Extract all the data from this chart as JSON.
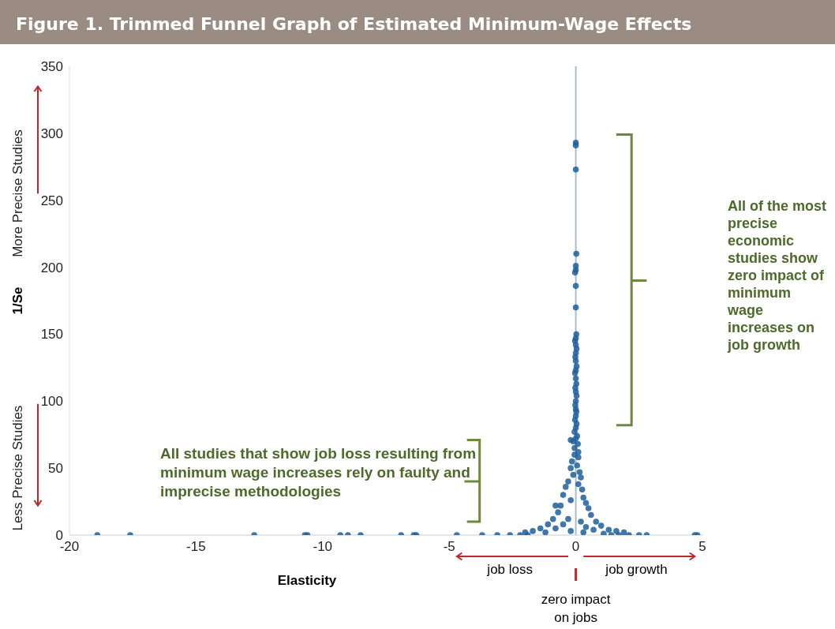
{
  "chart_data": {
    "type": "scatter",
    "title": "Figure 1. Trimmed Funnel Graph of Estimated Minimum-Wage Effects",
    "xlabel": "Elasticity",
    "ylabel": "1/Se",
    "annotations": [
      "All studies that show job loss resulting from minimum wage increases rely on faulty and imprecise methodologies",
      "All of the most precise economic studies show zero impact of minimum wage increases on job growth",
      "More Precise Studies",
      "Less Precise Studies",
      "job loss",
      "job growth",
      "zero impact on jobs"
    ],
    "xlim": [
      -20,
      5
    ],
    "xticks": [
      -20,
      -15,
      -10,
      -5,
      0,
      5
    ],
    "ylim": [
      0,
      350
    ],
    "yticks": [
      0,
      50,
      100,
      150,
      200,
      250,
      300,
      350
    ],
    "grid": false,
    "marker": "circle",
    "ref_lines": [
      {
        "axis": "x",
        "value": 0,
        "color": "#a9bccf"
      }
    ],
    "series": [
      {
        "color": "#1f5f9b",
        "x": [
          0,
          0,
          0,
          0.02,
          0,
          0,
          -0.03,
          0,
          0,
          0.02,
          0,
          -0.03,
          0,
          0.03,
          0,
          -0.02,
          0,
          0.03,
          0,
          -0.03,
          0,
          0.02,
          -0.02,
          0,
          0.03,
          0,
          -0.02,
          0,
          0.02,
          0,
          -0.03,
          0.03,
          0,
          -0.05,
          0.05,
          0,
          -0.2,
          -0.1,
          0.08,
          -0.05,
          0.1,
          -0.05,
          0.1,
          -0.15,
          0.05,
          -0.2,
          0.15,
          -0.1,
          0.2,
          -0.3,
          0.1,
          -0.4,
          0.25,
          -0.5,
          0.3,
          -0.2,
          -0.8,
          0.4,
          -0.6,
          0.5,
          -0.7,
          0.6,
          -0.9,
          0.8,
          -1.1,
          1.0,
          -1.4,
          1.3,
          -1.7,
          1.6,
          -2.0,
          1.9,
          -0.3,
          0.2,
          -0.5,
          0.4,
          -0.8,
          0.7,
          -1.2,
          1.1,
          -0.2,
          0.3,
          -18.9,
          -17.6,
          -12.7,
          -10.7,
          -10.6,
          -9.3,
          -9.0,
          -8.5,
          -6.9,
          -6.4,
          -6.3,
          -4.7,
          -3.7,
          -3.1,
          -2.6,
          -2.2,
          -1.9,
          1.4,
          1.7,
          2.1,
          2.5,
          2.8,
          4.7,
          4.8
        ],
        "values": [
          293,
          291,
          273,
          210,
          201,
          198,
          196,
          186,
          170,
          150,
          147,
          145,
          142,
          139,
          136,
          133,
          130,
          126,
          123,
          121,
          117,
          113,
          110,
          107,
          104,
          100,
          97,
          94,
          92,
          89,
          86,
          83,
          80,
          77,
          74,
          72,
          71,
          70,
          68,
          65,
          62,
          60,
          58,
          55,
          52,
          50,
          47,
          45,
          43,
          40,
          38,
          36,
          34,
          30,
          28,
          26,
          22,
          24,
          22,
          20,
          17,
          15,
          12,
          10,
          8,
          7,
          5,
          4,
          3,
          3,
          2,
          2,
          12,
          10,
          8,
          6,
          5,
          4,
          2,
          1,
          3,
          2,
          0,
          0,
          0,
          0,
          0,
          0,
          0,
          0,
          0,
          0,
          0,
          0,
          0,
          0,
          0,
          0,
          0,
          0,
          0,
          0,
          0,
          0,
          0,
          0
        ]
      }
    ]
  }
}
